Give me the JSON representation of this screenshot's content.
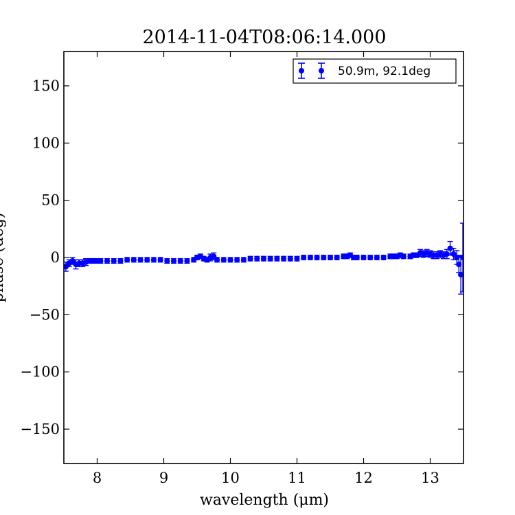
{
  "chart_data": {
    "type": "scatter",
    "title": "2014-11-04T08:06:14.000",
    "xlabel": "wavelength (μm)",
    "ylabel": "phase (deg)",
    "xlim": [
      7.5,
      13.5
    ],
    "ylim": [
      -180,
      180
    ],
    "x_ticks": [
      8,
      9,
      10,
      11,
      12,
      13
    ],
    "y_ticks": [
      150,
      100,
      50,
      0,
      -50,
      -100,
      -150
    ],
    "y_tick_labels": [
      "150",
      "100",
      "50",
      "0",
      "−50",
      "−100",
      "−150"
    ],
    "grid": false,
    "legend_position": "top-right",
    "series": [
      {
        "name": "50.9m, 92.1deg",
        "color": "#0000ff",
        "marker": "circle",
        "error_bars": true,
        "x": [
          7.53,
          7.58,
          7.63,
          7.68,
          7.73,
          7.78,
          7.83,
          7.88,
          7.93,
          7.98,
          8.05,
          8.15,
          8.25,
          8.35,
          8.45,
          8.55,
          8.65,
          8.75,
          8.85,
          8.95,
          9.05,
          9.15,
          9.25,
          9.35,
          9.45,
          9.5,
          9.55,
          9.6,
          9.65,
          9.7,
          9.75,
          9.8,
          9.9,
          10.0,
          10.1,
          10.2,
          10.3,
          10.4,
          10.5,
          10.6,
          10.7,
          10.8,
          10.9,
          11.0,
          11.1,
          11.2,
          11.3,
          11.4,
          11.5,
          11.6,
          11.7,
          11.75,
          11.8,
          11.85,
          11.9,
          12.0,
          12.1,
          12.2,
          12.3,
          12.4,
          12.45,
          12.5,
          12.55,
          12.6,
          12.7,
          12.75,
          12.8,
          12.85,
          12.9,
          12.95,
          13.0,
          13.05,
          13.1,
          13.15,
          13.2,
          13.25,
          13.3,
          13.35,
          13.4,
          13.43,
          13.46,
          13.49
        ],
        "y": [
          -8,
          -5,
          -3,
          -6,
          -5,
          -5,
          -4,
          -3,
          -3,
          -3,
          -3,
          -3,
          -3,
          -3,
          -2,
          -2,
          -2,
          -2,
          -2,
          -2,
          -3,
          -3,
          -3,
          -3,
          -2,
          0,
          1,
          -1,
          -2,
          0,
          1,
          -2,
          -2,
          -2,
          -2,
          -2,
          -1,
          -1,
          -1,
          -1,
          -1,
          -1,
          -1,
          -1,
          0,
          0,
          0,
          0,
          0,
          0,
          1,
          1,
          2,
          0,
          0,
          0,
          0,
          0,
          0,
          1,
          1,
          1,
          2,
          1,
          1,
          2,
          2,
          4,
          3,
          4,
          3,
          2,
          2,
          3,
          2,
          3,
          8,
          3,
          0,
          -6,
          -15,
          0
        ],
        "yerr": [
          4,
          3,
          3,
          4,
          3,
          3,
          3,
          2,
          2,
          2,
          2,
          2,
          2,
          2,
          2,
          2,
          2,
          2,
          2,
          2,
          2,
          2,
          2,
          2,
          2,
          2,
          2,
          2,
          2,
          3,
          3,
          2,
          2,
          2,
          2,
          2,
          2,
          2,
          2,
          2,
          2,
          2,
          2,
          2,
          2,
          2,
          2,
          2,
          2,
          2,
          2,
          2,
          2,
          2,
          2,
          2,
          2,
          2,
          2,
          2,
          2,
          2,
          2,
          2,
          2,
          2,
          2,
          3,
          3,
          3,
          3,
          3,
          3,
          3,
          3,
          4,
          6,
          5,
          6,
          7,
          17,
          30
        ]
      }
    ]
  }
}
